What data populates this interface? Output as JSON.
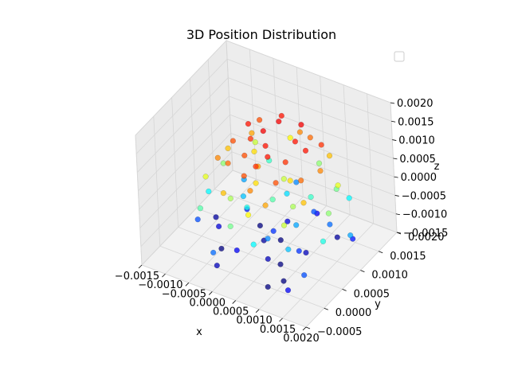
{
  "chart_data": {
    "type": "scatter3d",
    "title": "3D Position Distribution",
    "xlabel": "x",
    "ylabel": "y",
    "zlabel": "z",
    "xlim": [
      -0.0015,
      0.002
    ],
    "ylim": [
      -0.0005,
      0.002
    ],
    "zlim": [
      -0.0015,
      0.002
    ],
    "x_ticks": [
      "−0.0015",
      "−0.0010",
      "−0.0005",
      "0.0000",
      "0.0005",
      "0.0010",
      "0.0015",
      "0.0020"
    ],
    "y_ticks": [
      "−0.0005",
      "0.0000",
      "0.0005",
      "0.0010",
      "0.0015",
      "0.0020"
    ],
    "z_ticks": [
      "−0.0015",
      "−0.0010",
      "−0.0005",
      "0.0000",
      "0.0005",
      "0.0010",
      "0.0015",
      "0.0020"
    ],
    "colormap": "jet",
    "color_by": "z",
    "grid": true,
    "legend": "top-right",
    "points": [
      [
        0.0004,
        0.0006,
        0.0015
      ],
      [
        0.0002,
        0.0008,
        0.0016
      ],
      [
        0.0006,
        0.0004,
        0.0015
      ],
      [
        0.0,
        0.0007,
        0.0014
      ],
      [
        0.0008,
        0.0009,
        0.0015
      ],
      [
        0.0003,
        0.0011,
        0.0016
      ],
      [
        0.0005,
        0.0002,
        0.0014
      ],
      [
        0.0001,
        0.0004,
        0.0013
      ],
      [
        0.0009,
        0.0005,
        0.0014
      ],
      [
        -0.0002,
        0.0009,
        0.0015
      ],
      [
        0.0007,
        0.0012,
        0.0016
      ],
      [
        0.0004,
        0.0,
        0.0013
      ],
      [
        0.0011,
        0.0008,
        0.0015
      ],
      [
        -0.0001,
        0.0002,
        0.0012
      ],
      [
        0.001,
        0.0001,
        0.0013
      ],
      [
        0.0002,
        0.0013,
        0.0015
      ],
      [
        -0.0003,
        0.0006,
        0.0013
      ],
      [
        0.0012,
        0.0011,
        0.0014
      ],
      [
        0.0006,
        -0.0001,
        0.0011
      ],
      [
        -0.0002,
        0.0012,
        0.0013
      ],
      [
        0.0013,
        0.0004,
        0.0012
      ],
      [
        0.0003,
        0.0005,
        0.001
      ],
      [
        0.0008,
        0.0013,
        0.0012
      ],
      [
        -0.0004,
        0.0003,
        0.0011
      ],
      [
        0.0014,
        0.0008,
        0.0011
      ],
      [
        0.0001,
        -0.0002,
        0.0009
      ],
      [
        0.001,
        -0.0002,
        0.001
      ],
      [
        -0.0003,
        0.0011,
        0.001
      ],
      [
        0.0005,
        0.0014,
        0.0011
      ],
      [
        0.0015,
        0.0002,
        0.0009
      ],
      [
        -0.0005,
        0.0007,
        0.0009
      ],
      [
        0.0012,
        0.0013,
        0.0009
      ],
      [
        0.0004,
        0.0003,
        0.0008
      ],
      [
        -0.0001,
        0.0009,
        0.0008
      ],
      [
        0.0009,
        0.0006,
        0.0008
      ],
      [
        0.0007,
        -0.0003,
        0.0007
      ],
      [
        -0.0006,
        0.0002,
        0.0006
      ],
      [
        0.0016,
        0.001,
        0.0006
      ],
      [
        0.0002,
        0.0015,
        0.0007
      ],
      [
        0.0013,
        -0.0001,
        0.0005
      ],
      [
        -0.0004,
        0.0013,
        0.0005
      ],
      [
        0.0006,
        0.0008,
        0.0005
      ],
      [
        0.0,
        0.0001,
        0.0004
      ],
      [
        0.0011,
        0.0004,
        0.0004
      ],
      [
        0.0017,
        0.0006,
        0.0003
      ],
      [
        -0.0007,
        0.0008,
        0.0003
      ],
      [
        0.0008,
        0.0015,
        0.0003
      ],
      [
        0.0003,
        -0.0003,
        0.0002
      ],
      [
        0.0014,
        0.0012,
        0.0002
      ],
      [
        -0.0005,
        -0.0001,
        0.0001
      ],
      [
        0.0005,
        0.0006,
        0.0001
      ],
      [
        0.001,
        0.001,
        0.0
      ],
      [
        -0.0002,
        0.0014,
        0.0
      ],
      [
        0.0018,
        0.0003,
        -0.0001
      ],
      [
        0.0001,
        0.0004,
        -0.0001
      ],
      [
        0.0007,
        -0.0002,
        -0.0002
      ],
      [
        -0.0008,
        0.0005,
        -0.0002
      ],
      [
        0.0015,
        0.0014,
        -0.0002
      ],
      [
        0.0004,
        0.0011,
        -0.0003
      ],
      [
        0.0012,
        0.0001,
        -0.0004
      ],
      [
        -0.0003,
        0.0008,
        -0.0004
      ],
      [
        0.0009,
        0.0007,
        -0.0005
      ],
      [
        0.0019,
        0.0009,
        -0.0005
      ],
      [
        -0.0006,
        0.0012,
        -0.0005
      ],
      [
        0.0006,
        0.0003,
        -0.0006
      ],
      [
        0.0002,
        0.0016,
        -0.0006
      ],
      [
        0.0013,
        0.0011,
        -0.0007
      ],
      [
        -0.0001,
        -0.0003,
        -0.0007
      ],
      [
        0.0016,
        0.0,
        -0.0008
      ],
      [
        0.0008,
        0.0013,
        -0.0008
      ],
      [
        -0.0009,
        0.0003,
        -0.0008
      ],
      [
        0.0004,
        0.0007,
        -0.0009
      ],
      [
        0.0011,
        0.0005,
        -0.0009
      ],
      [
        -0.0004,
        0.001,
        -0.001
      ],
      [
        0.0017,
        0.0012,
        -0.001
      ],
      [
        0.0,
        0.0002,
        -0.0011
      ],
      [
        0.0007,
        0.0015,
        -0.0011
      ],
      [
        0.0014,
        -0.0002,
        -0.0011
      ],
      [
        -0.0007,
        0.0006,
        -0.0012
      ],
      [
        0.0003,
        0.0012,
        -0.0012
      ],
      [
        0.001,
        0.0008,
        -0.0013
      ],
      [
        -0.0002,
        -0.0001,
        -0.0013
      ],
      [
        0.0005,
        0.0004,
        -0.0013
      ],
      [
        -0.001,
        0.0009,
        -0.0014
      ],
      [
        0.0012,
        0.0014,
        -0.0014
      ],
      [
        0.0001,
        0.0008,
        -0.0014
      ],
      [
        0.0008,
        0.0,
        -0.0015
      ],
      [
        -0.0005,
        0.0004,
        -0.0015
      ],
      [
        0.0003,
        0.001,
        -0.0015
      ],
      [
        0.0006,
        0.0006,
        -0.0016
      ],
      [
        -0.0003,
        0.0012,
        -0.0016
      ],
      [
        0.0009,
        0.0003,
        -0.0016
      ]
    ]
  }
}
